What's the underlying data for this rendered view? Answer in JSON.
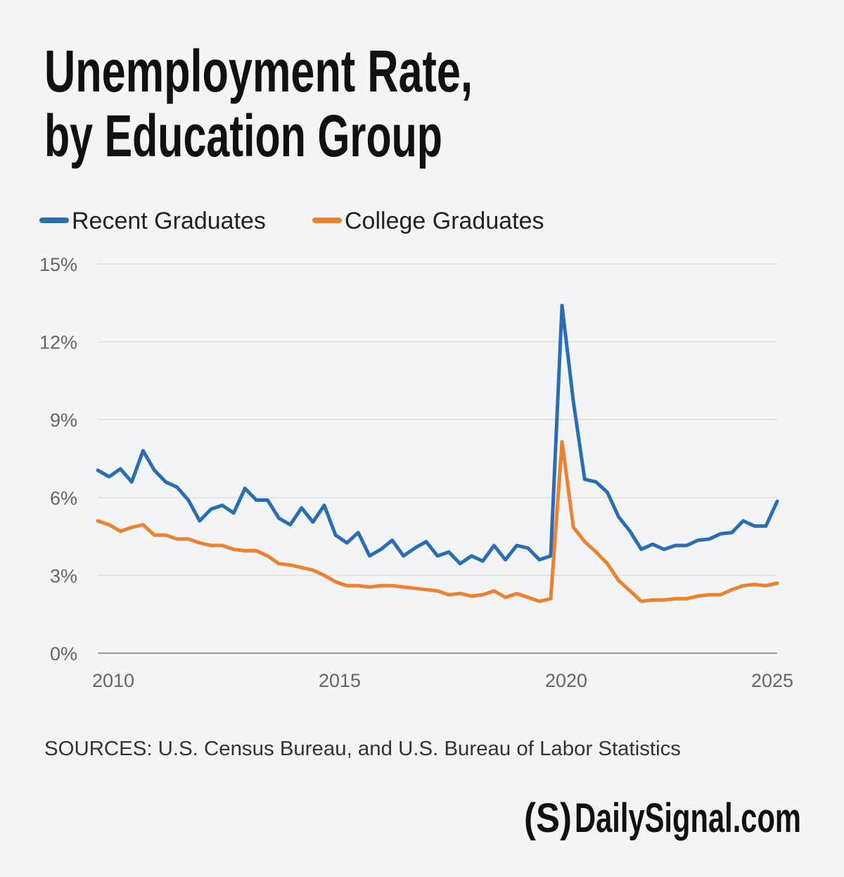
{
  "chart_data": {
    "type": "line",
    "title": [
      "Unemployment Rate,",
      "by Education Group"
    ],
    "x": [
      2010,
      2010.25,
      2010.5,
      2010.75,
      2011,
      2011.25,
      2011.5,
      2011.75,
      2012,
      2012.25,
      2012.5,
      2012.75,
      2013,
      2013.25,
      2013.5,
      2013.75,
      2014,
      2014.25,
      2014.5,
      2014.75,
      2015,
      2015.25,
      2015.5,
      2015.75,
      2016,
      2016.25,
      2016.5,
      2016.75,
      2017,
      2017.25,
      2017.5,
      2017.75,
      2018,
      2018.25,
      2018.5,
      2018.75,
      2019,
      2019.25,
      2019.5,
      2019.75,
      2020,
      2020.25,
      2020.5,
      2020.75,
      2021,
      2021.25,
      2021.5,
      2021.75,
      2022,
      2022.25,
      2022.5,
      2022.75,
      2023,
      2023.25,
      2023.5,
      2023.75,
      2024,
      2024.25,
      2024.5,
      2024.75,
      2025
    ],
    "series": [
      {
        "name": "Recent Graduates",
        "color": "#2a6db5",
        "values": [
          7.05,
          6.8,
          7.1,
          6.6,
          7.8,
          7.05,
          6.6,
          6.4,
          5.9,
          5.1,
          5.55,
          5.7,
          5.4,
          6.35,
          5.9,
          5.9,
          5.2,
          4.95,
          5.6,
          5.05,
          5.7,
          4.55,
          4.25,
          4.65,
          3.75,
          4.0,
          4.35,
          3.75,
          4.05,
          4.3,
          3.75,
          3.9,
          3.45,
          3.75,
          3.55,
          4.15,
          3.6,
          4.15,
          4.05,
          3.6,
          3.75,
          13.4,
          9.7,
          6.7,
          6.6,
          6.2,
          5.25,
          4.7,
          4.0,
          4.2,
          4.0,
          4.15,
          4.15,
          4.35,
          4.4,
          4.6,
          4.65,
          5.1,
          4.9,
          4.9,
          5.85
        ]
      },
      {
        "name": "College Graduates",
        "color": "#ee8130",
        "values": [
          5.1,
          4.95,
          4.7,
          4.85,
          4.95,
          4.55,
          4.55,
          4.4,
          4.4,
          4.25,
          4.15,
          4.15,
          4.0,
          3.95,
          3.95,
          3.75,
          3.45,
          3.4,
          3.3,
          3.2,
          3.0,
          2.75,
          2.6,
          2.6,
          2.55,
          2.6,
          2.6,
          2.55,
          2.5,
          2.45,
          2.4,
          2.25,
          2.3,
          2.2,
          2.25,
          2.4,
          2.15,
          2.3,
          2.15,
          2.0,
          2.1,
          8.15,
          4.85,
          4.3,
          3.9,
          3.45,
          2.8,
          2.4,
          2.0,
          2.05,
          2.05,
          2.1,
          2.1,
          2.2,
          2.25,
          2.25,
          2.45,
          2.6,
          2.65,
          2.6,
          2.7
        ]
      }
    ],
    "xlim": [
      2010,
      2025
    ],
    "xticks": [
      2010,
      2015,
      2020,
      2025
    ],
    "ylim": [
      0,
      15
    ],
    "yticks": [
      {
        "value": 0,
        "label": "0%"
      },
      {
        "value": 3,
        "label": "3%"
      },
      {
        "value": 6,
        "label": "6%"
      },
      {
        "value": 9,
        "label": "9%"
      },
      {
        "value": 12,
        "label": "12%"
      },
      {
        "value": 15,
        "label": "15%"
      }
    ],
    "grid": true,
    "source": "SOURCES: U.S. Census Bureau, and U.S. Bureau of Labor Statistics",
    "logo": [
      "(S)",
      "DailySignal.com"
    ]
  }
}
